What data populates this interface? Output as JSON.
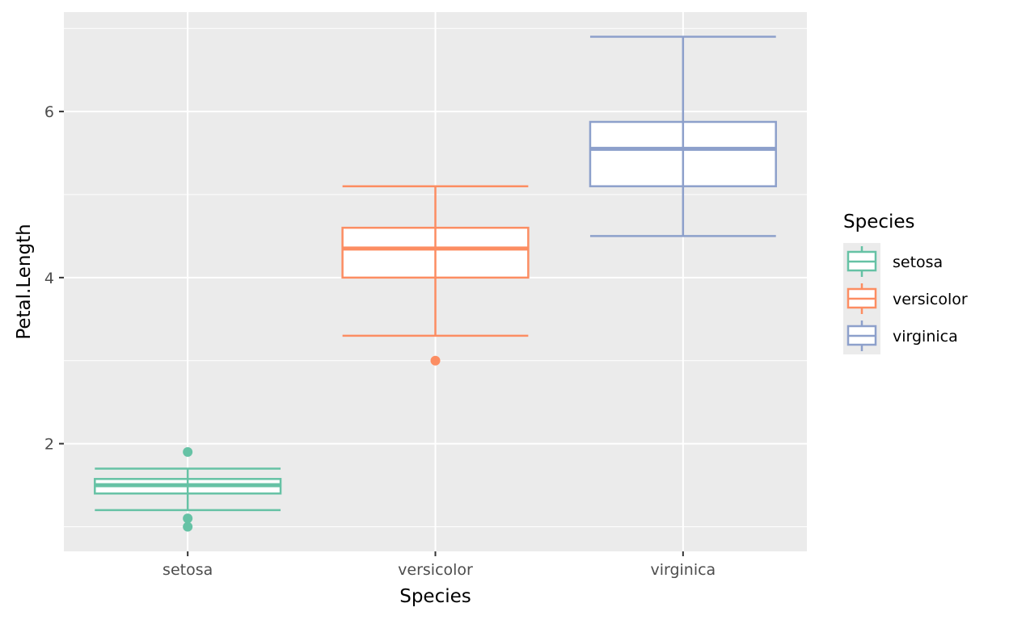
{
  "chart_data": {
    "type": "boxplot",
    "title": "",
    "xlabel": "Species",
    "ylabel": "Petal.Length",
    "ylim": [
      0.703,
      7.197
    ],
    "yticks": [
      2,
      4,
      6
    ],
    "ytick_labels": [
      "2",
      "4",
      "6"
    ],
    "yminor": [
      1,
      3,
      5,
      7
    ],
    "categories": [
      "setosa",
      "versicolor",
      "virginica"
    ],
    "grid": true,
    "legend": {
      "title": "Species",
      "position": "right",
      "entries": [
        "setosa",
        "versicolor",
        "virginica"
      ]
    },
    "series": [
      {
        "name": "setosa",
        "color": "#66c2a5",
        "whisker_low": 1.2,
        "q1": 1.4,
        "median": 1.5,
        "q3": 1.575,
        "whisker_high": 1.7,
        "outliers": [
          1.9,
          1.1,
          1.0
        ]
      },
      {
        "name": "versicolor",
        "color": "#fc8d62",
        "whisker_low": 3.3,
        "q1": 4.0,
        "median": 4.35,
        "q3": 4.6,
        "whisker_high": 5.1,
        "outliers": [
          3.0
        ]
      },
      {
        "name": "virginica",
        "color": "#8da0cb",
        "whisker_low": 4.5,
        "q1": 5.1,
        "median": 5.55,
        "q3": 5.875,
        "whisker_high": 6.9,
        "outliers": []
      }
    ]
  },
  "colors": {
    "panel_background": "#ebebeb",
    "grid": "#ffffff",
    "tick_text": "#4d4d4d"
  }
}
